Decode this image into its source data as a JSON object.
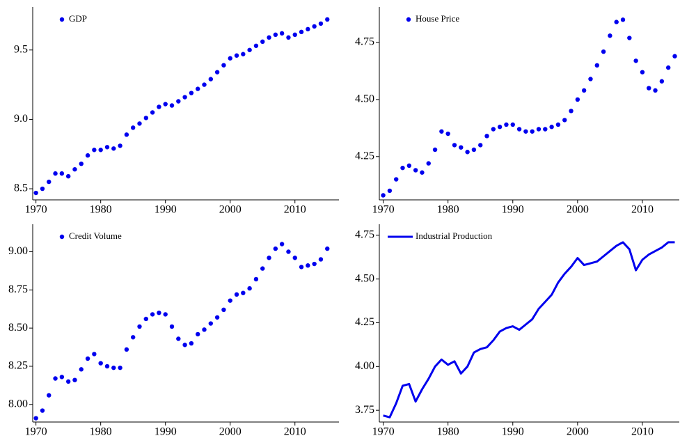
{
  "chart_data": [
    {
      "type": "scatter",
      "legend": "upper left",
      "x": [
        1970,
        1971,
        1972,
        1973,
        1974,
        1975,
        1976,
        1977,
        1978,
        1979,
        1980,
        1981,
        1982,
        1983,
        1984,
        1985,
        1986,
        1987,
        1988,
        1989,
        1990,
        1991,
        1992,
        1993,
        1994,
        1995,
        1996,
        1997,
        1998,
        1999,
        2000,
        2001,
        2002,
        2003,
        2004,
        2005,
        2006,
        2007,
        2008,
        2009,
        2010,
        2011,
        2012,
        2013,
        2014,
        2015
      ],
      "series": [
        {
          "name": "GDP",
          "color": "#0000ee",
          "values": [
            8.47,
            8.5,
            8.55,
            8.61,
            8.61,
            8.59,
            8.64,
            8.68,
            8.74,
            8.78,
            8.78,
            8.8,
            8.79,
            8.81,
            8.89,
            8.94,
            8.97,
            9.01,
            9.05,
            9.09,
            9.11,
            9.1,
            9.13,
            9.16,
            9.19,
            9.22,
            9.25,
            9.29,
            9.34,
            9.39,
            9.44,
            9.46,
            9.47,
            9.5,
            9.53,
            9.56,
            9.59,
            9.61,
            9.62,
            9.59,
            9.61,
            9.63,
            9.65,
            9.67,
            9.69,
            9.72
          ]
        }
      ],
      "xlim": [
        1969.5,
        2016.8
      ],
      "xticks": [
        1970,
        1980,
        1990,
        2000,
        2010
      ],
      "ylim": [
        8.42,
        9.81
      ],
      "yticks": [
        8.5,
        {
          "value": 9,
          "label": "9.0"
        },
        9.5
      ]
    },
    {
      "type": "scatter",
      "legend": "upper left",
      "x": [
        1970,
        1971,
        1972,
        1973,
        1974,
        1975,
        1976,
        1977,
        1978,
        1979,
        1980,
        1981,
        1982,
        1983,
        1984,
        1985,
        1986,
        1987,
        1988,
        1989,
        1990,
        1991,
        1992,
        1993,
        1994,
        1995,
        1996,
        1997,
        1998,
        1999,
        2000,
        2001,
        2002,
        2003,
        2004,
        2005,
        2006,
        2007,
        2008,
        2009,
        2010,
        2011,
        2012,
        2013,
        2014,
        2015
      ],
      "series": [
        {
          "name": "House Price",
          "color": "#0000ee",
          "values": [
            4.08,
            4.1,
            4.15,
            4.2,
            4.21,
            4.19,
            4.18,
            4.22,
            4.28,
            4.36,
            4.35,
            4.3,
            4.29,
            4.27,
            4.28,
            4.3,
            4.34,
            4.37,
            4.38,
            4.39,
            4.39,
            4.37,
            4.36,
            4.36,
            4.37,
            4.37,
            4.38,
            4.39,
            4.41,
            4.45,
            4.5,
            4.54,
            4.59,
            4.65,
            4.71,
            4.78,
            4.84,
            4.85,
            4.77,
            4.67,
            4.62,
            4.55,
            4.54,
            4.58,
            4.64,
            4.69
          ]
        }
      ],
      "xlim": [
        1969.4,
        2015.7
      ],
      "xticks": [
        1970,
        1980,
        1990,
        2000,
        2010
      ],
      "ylim": [
        4.06,
        4.906
      ],
      "yticks": [
        4.25,
        {
          "value": 4.5,
          "label": "4.50"
        },
        4.75
      ]
    },
    {
      "type": "scatter",
      "legend": "upper left",
      "x": [
        1970,
        1971,
        1972,
        1973,
        1974,
        1975,
        1976,
        1977,
        1978,
        1979,
        1980,
        1981,
        1982,
        1983,
        1984,
        1985,
        1986,
        1987,
        1988,
        1989,
        1990,
        1991,
        1992,
        1993,
        1994,
        1995,
        1996,
        1997,
        1998,
        1999,
        2000,
        2001,
        2002,
        2003,
        2004,
        2005,
        2006,
        2007,
        2008,
        2009,
        2010,
        2011,
        2012,
        2013,
        2014,
        2015
      ],
      "series": [
        {
          "name": "Credit Volume",
          "color": "#0000ee",
          "values": [
            7.91,
            7.96,
            8.06,
            8.17,
            8.18,
            8.15,
            8.16,
            8.23,
            8.3,
            8.33,
            8.27,
            8.25,
            8.24,
            8.24,
            8.36,
            8.44,
            8.51,
            8.56,
            8.59,
            8.6,
            8.59,
            8.51,
            8.43,
            8.39,
            8.4,
            8.46,
            8.49,
            8.53,
            8.57,
            8.62,
            8.68,
            8.72,
            8.73,
            8.76,
            8.82,
            8.89,
            8.96,
            9.02,
            9.05,
            9.0,
            8.96,
            8.9,
            8.91,
            8.92,
            8.95,
            9.02
          ]
        }
      ],
      "xlim": [
        1969.5,
        2016.8
      ],
      "xticks": [
        1970,
        1980,
        1990,
        2000,
        2010
      ],
      "ylim": [
        7.885,
        9.18
      ],
      "yticks": [
        {
          "value": 8,
          "label": "8.00"
        },
        8.25,
        {
          "value": 8.5,
          "label": "8.50"
        },
        8.75,
        {
          "value": 9,
          "label": "9.00"
        }
      ]
    },
    {
      "type": "line",
      "legend": "upper left",
      "x": [
        1970,
        1971,
        1972,
        1973,
        1974,
        1975,
        1976,
        1977,
        1978,
        1979,
        1980,
        1981,
        1982,
        1983,
        1984,
        1985,
        1986,
        1987,
        1988,
        1989,
        1990,
        1991,
        1992,
        1993,
        1994,
        1995,
        1996,
        1997,
        1998,
        1999,
        2000,
        2001,
        2002,
        2003,
        2004,
        2005,
        2006,
        2007,
        2008,
        2009,
        2010,
        2011,
        2012,
        2013,
        2014,
        2015
      ],
      "series": [
        {
          "name": "Industrial Production",
          "color": "#0000ee",
          "values": [
            3.72,
            3.71,
            3.79,
            3.89,
            3.9,
            3.8,
            3.87,
            3.93,
            4.0,
            4.04,
            4.01,
            4.03,
            3.96,
            4.0,
            4.08,
            4.1,
            4.11,
            4.15,
            4.2,
            4.22,
            4.23,
            4.21,
            4.24,
            4.27,
            4.33,
            4.37,
            4.41,
            4.48,
            4.53,
            4.57,
            4.62,
            4.58,
            4.59,
            4.6,
            4.63,
            4.66,
            4.69,
            4.71,
            4.67,
            4.55,
            4.61,
            4.64,
            4.66,
            4.68,
            4.71,
            4.71
          ]
        }
      ],
      "xlim": [
        1969.4,
        2015.7
      ],
      "xticks": [
        1970,
        1980,
        1990,
        2000,
        2010
      ],
      "ylim": [
        3.683,
        4.813
      ],
      "yticks": [
        3.75,
        {
          "value": 4,
          "label": "4.00"
        },
        4.25,
        {
          "value": 4.5,
          "label": "4.50"
        },
        4.75
      ]
    }
  ]
}
